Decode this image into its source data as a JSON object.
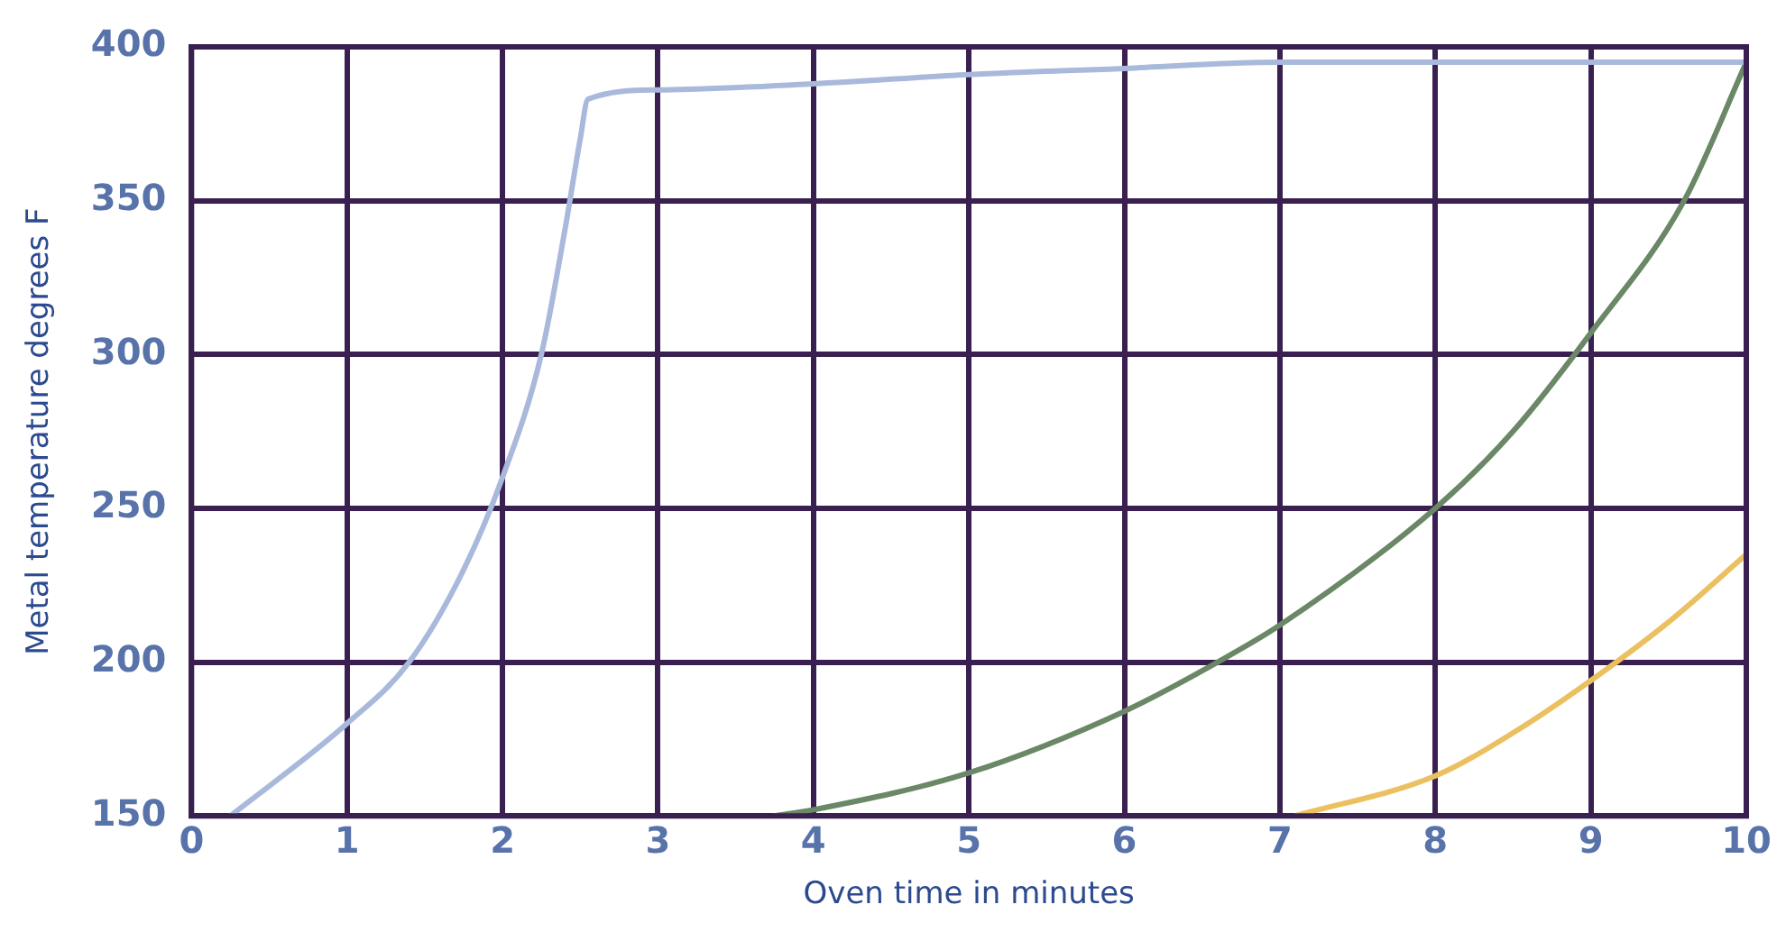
{
  "chart_data": {
    "type": "line",
    "xlabel": "Oven time in minutes",
    "ylabel": "Metal temperature degrees F",
    "xlim": [
      0,
      10
    ],
    "xticks": [
      0,
      1,
      2,
      3,
      4,
      5,
      6,
      7,
      8,
      9,
      10
    ],
    "ylim": [
      150,
      400
    ],
    "yticks": [
      150,
      200,
      250,
      300,
      350,
      400
    ],
    "grid": true,
    "marker": "none",
    "line_style": "solid",
    "series": [
      {
        "color": "#a9b9dc",
        "x": [
          0.25,
          1,
          1.4,
          1.75,
          2,
          2.25,
          2.4,
          2.5,
          2.55,
          3,
          4,
          5,
          6,
          7,
          8,
          10
        ],
        "values": [
          150,
          180,
          200,
          230,
          260,
          300,
          340,
          370,
          383,
          386,
          388,
          391,
          393,
          395,
          395,
          395
        ]
      },
      {
        "color": "#6a8766",
        "x": [
          3.75,
          4,
          5,
          6,
          6.6,
          7,
          8,
          8.5,
          9,
          9.6,
          10
        ],
        "values": [
          150,
          152,
          164,
          184,
          200,
          212,
          250,
          275,
          307,
          350,
          395
        ]
      },
      {
        "color": "#ebc060",
        "x": [
          7.1,
          8,
          8.5,
          9,
          9.5,
          10
        ],
        "values": [
          150,
          163,
          177,
          194,
          213,
          235
        ]
      }
    ]
  }
}
